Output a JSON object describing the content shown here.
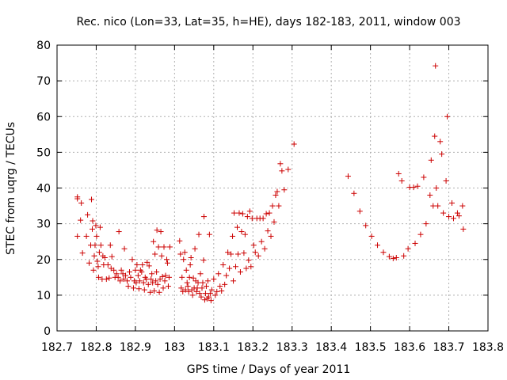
{
  "chart_data": {
    "type": "scatter",
    "title": "Rec. nico (Lon=33, Lat=35, h=HE), days 182-183, 2011, window 003",
    "xlabel": "GPS time / Days of year 2011",
    "ylabel": "STEC from uqrg / TECUs",
    "xlim": [
      182.7,
      183.8
    ],
    "ylim": [
      0,
      80
    ],
    "xticks": [
      "182.7",
      "182.8",
      "182.9",
      "183",
      "183.1",
      "183.2",
      "183.3",
      "183.4",
      "183.5",
      "183.6",
      "183.7",
      "183.8"
    ],
    "yticks": [
      "0",
      "10",
      "20",
      "30",
      "40",
      "50",
      "60",
      "70",
      "80"
    ],
    "grid": true,
    "marker": "+",
    "color": "#cc0000",
    "points": [
      [
        182.752,
        37.5
      ],
      [
        182.752,
        37.0
      ],
      [
        182.752,
        26.5
      ],
      [
        182.76,
        31.0
      ],
      [
        182.762,
        35.8
      ],
      [
        182.765,
        21.8
      ],
      [
        182.775,
        26.5
      ],
      [
        182.778,
        32.5
      ],
      [
        182.782,
        19.0
      ],
      [
        182.786,
        24.0
      ],
      [
        182.788,
        36.8
      ],
      [
        182.79,
        28.5
      ],
      [
        182.791,
        30.8
      ],
      [
        182.793,
        17.0
      ],
      [
        182.795,
        21.0
      ],
      [
        182.797,
        24.0
      ],
      [
        182.799,
        29.5
      ],
      [
        182.801,
        26.5
      ],
      [
        182.803,
        19.5
      ],
      [
        182.805,
        18.0
      ],
      [
        182.806,
        15.0
      ],
      [
        182.808,
        22.0
      ],
      [
        182.81,
        29.0
      ],
      [
        182.812,
        24.0
      ],
      [
        182.815,
        14.5
      ],
      [
        182.817,
        21.0
      ],
      [
        182.819,
        18.5
      ],
      [
        182.822,
        20.5
      ],
      [
        182.826,
        14.5
      ],
      [
        182.83,
        18.5
      ],
      [
        182.833,
        14.8
      ],
      [
        182.836,
        24.0
      ],
      [
        182.838,
        17.5
      ],
      [
        182.84,
        20.8
      ],
      [
        182.845,
        17.0
      ],
      [
        182.848,
        15.0
      ],
      [
        182.852,
        16.0
      ],
      [
        182.856,
        15.0
      ],
      [
        182.858,
        27.8
      ],
      [
        182.861,
        14.0
      ],
      [
        182.864,
        17.0
      ],
      [
        182.868,
        16.0
      ],
      [
        182.87,
        14.5
      ],
      [
        182.872,
        23.0
      ],
      [
        182.875,
        15.5
      ],
      [
        182.879,
        14.0
      ],
      [
        182.882,
        12.5
      ],
      [
        182.885,
        16.5
      ],
      [
        182.888,
        15.0
      ],
      [
        182.892,
        20.0
      ],
      [
        182.895,
        12.0
      ],
      [
        182.897,
        14.0
      ],
      [
        182.9,
        17.0
      ],
      [
        182.902,
        13.5
      ],
      [
        182.904,
        18.5
      ],
      [
        182.907,
        15.5
      ],
      [
        182.909,
        11.8
      ],
      [
        182.911,
        14.0
      ],
      [
        182.913,
        17.0
      ],
      [
        182.916,
        16.5
      ],
      [
        182.918,
        18.5
      ],
      [
        182.921,
        13.5
      ],
      [
        182.923,
        11.5
      ],
      [
        182.925,
        15.0
      ],
      [
        182.928,
        14.5
      ],
      [
        182.93,
        19.2
      ],
      [
        182.933,
        13.0
      ],
      [
        182.935,
        18.2
      ],
      [
        182.938,
        10.8
      ],
      [
        182.94,
        14.5
      ],
      [
        182.942,
        16.0
      ],
      [
        182.944,
        13.5
      ],
      [
        182.946,
        25.0
      ],
      [
        182.948,
        11.2
      ],
      [
        182.95,
        21.5
      ],
      [
        182.952,
        14.0
      ],
      [
        182.954,
        16.5
      ],
      [
        182.955,
        28.2
      ],
      [
        182.957,
        13.0
      ],
      [
        182.959,
        23.5
      ],
      [
        182.961,
        10.8
      ],
      [
        182.963,
        14.5
      ],
      [
        182.965,
        27.8
      ],
      [
        182.967,
        21.0
      ],
      [
        182.969,
        15.2
      ],
      [
        182.971,
        12.0
      ],
      [
        182.973,
        23.5
      ],
      [
        182.975,
        14.0
      ],
      [
        182.977,
        15.5
      ],
      [
        182.98,
        20.0
      ],
      [
        182.982,
        19.0
      ],
      [
        182.984,
        12.5
      ],
      [
        182.986,
        15.0
      ],
      [
        182.988,
        23.5
      ],
      [
        183.013,
        25.2
      ],
      [
        183.015,
        21.5
      ],
      [
        183.017,
        12.0
      ],
      [
        183.019,
        15.0
      ],
      [
        183.021,
        11.0
      ],
      [
        183.023,
        20.0
      ],
      [
        183.026,
        22.0
      ],
      [
        183.028,
        11.5
      ],
      [
        183.03,
        17.0
      ],
      [
        183.032,
        13.5
      ],
      [
        183.034,
        12.5
      ],
      [
        183.036,
        11.0
      ],
      [
        183.038,
        15.0
      ],
      [
        183.04,
        18.5
      ],
      [
        183.042,
        20.5
      ],
      [
        183.044,
        11.5
      ],
      [
        183.046,
        10.0
      ],
      [
        183.048,
        14.8
      ],
      [
        183.05,
        12.0
      ],
      [
        183.052,
        23.0
      ],
      [
        183.054,
        14.0
      ],
      [
        183.056,
        11.0
      ],
      [
        183.058,
        12.0
      ],
      [
        183.06,
        13.5
      ],
      [
        183.062,
        27.0
      ],
      [
        183.064,
        10.5
      ],
      [
        183.066,
        16.0
      ],
      [
        183.068,
        9.5
      ],
      [
        183.07,
        12.0
      ],
      [
        183.072,
        13.5
      ],
      [
        183.074,
        19.8
      ],
      [
        183.075,
        32.0
      ],
      [
        183.077,
        8.7
      ],
      [
        183.079,
        10.5
      ],
      [
        183.081,
        12.5
      ],
      [
        183.083,
        9.0
      ],
      [
        183.085,
        14.0
      ],
      [
        183.087,
        9.5
      ],
      [
        183.089,
        27.0
      ],
      [
        183.091,
        10.5
      ],
      [
        183.093,
        8.5
      ],
      [
        183.095,
        11.5
      ],
      [
        183.1,
        14.5
      ],
      [
        183.104,
        10.0
      ],
      [
        183.108,
        11.0
      ],
      [
        183.112,
        16.0
      ],
      [
        183.116,
        12.5
      ],
      [
        183.12,
        11.2
      ],
      [
        183.124,
        18.5
      ],
      [
        183.128,
        13.0
      ],
      [
        183.132,
        15.5
      ],
      [
        183.136,
        22.0
      ],
      [
        183.14,
        17.5
      ],
      [
        183.144,
        21.5
      ],
      [
        183.148,
        26.5
      ],
      [
        183.15,
        14.0
      ],
      [
        183.152,
        33.0
      ],
      [
        183.156,
        18.0
      ],
      [
        183.16,
        29.0
      ],
      [
        183.162,
        21.5
      ],
      [
        183.165,
        33.0
      ],
      [
        183.168,
        16.5
      ],
      [
        183.171,
        27.8
      ],
      [
        183.174,
        32.8
      ],
      [
        183.177,
        21.8
      ],
      [
        183.18,
        27.0
      ],
      [
        183.183,
        17.5
      ],
      [
        183.186,
        32.0
      ],
      [
        183.189,
        19.8
      ],
      [
        183.192,
        33.5
      ],
      [
        183.195,
        18.0
      ],
      [
        183.198,
        31.5
      ],
      [
        183.202,
        24.0
      ],
      [
        183.206,
        22.0
      ],
      [
        183.21,
        31.5
      ],
      [
        183.214,
        21.0
      ],
      [
        183.218,
        31.5
      ],
      [
        183.222,
        25.0
      ],
      [
        183.226,
        31.5
      ],
      [
        183.23,
        23.0
      ],
      [
        183.234,
        32.8
      ],
      [
        183.238,
        28.0
      ],
      [
        183.242,
        33.0
      ],
      [
        183.246,
        26.5
      ],
      [
        183.25,
        35.0
      ],
      [
        183.254,
        30.5
      ],
      [
        183.258,
        38.0
      ],
      [
        183.262,
        39.0
      ],
      [
        183.266,
        35.0
      ],
      [
        183.27,
        46.8
      ],
      [
        183.274,
        44.8
      ],
      [
        183.28,
        39.5
      ],
      [
        183.29,
        45.2
      ],
      [
        183.305,
        52.3
      ],
      [
        183.443,
        43.3
      ],
      [
        183.458,
        38.5
      ],
      [
        183.473,
        33.5
      ],
      [
        183.488,
        29.5
      ],
      [
        183.503,
        26.5
      ],
      [
        183.518,
        24.0
      ],
      [
        183.533,
        22.0
      ],
      [
        183.548,
        20.8
      ],
      [
        183.558,
        20.3
      ],
      [
        183.566,
        20.5
      ],
      [
        183.572,
        44.0
      ],
      [
        183.58,
        42.0
      ],
      [
        183.585,
        21.0
      ],
      [
        183.596,
        23.0
      ],
      [
        183.6,
        40.2
      ],
      [
        183.61,
        40.2
      ],
      [
        183.614,
        24.5
      ],
      [
        183.62,
        40.5
      ],
      [
        183.628,
        27.0
      ],
      [
        183.636,
        43.0
      ],
      [
        183.642,
        30.0
      ],
      [
        183.652,
        38.0
      ],
      [
        183.655,
        47.8
      ],
      [
        183.66,
        35.0
      ],
      [
        183.664,
        54.5
      ],
      [
        183.666,
        74.2
      ],
      [
        183.668,
        40.0
      ],
      [
        183.672,
        35.0
      ],
      [
        183.678,
        53.0
      ],
      [
        183.682,
        49.5
      ],
      [
        183.686,
        33.0
      ],
      [
        183.693,
        42.0
      ],
      [
        183.696,
        60.0
      ],
      [
        183.7,
        32.0
      ],
      [
        183.708,
        35.8
      ],
      [
        183.712,
        31.5
      ],
      [
        183.722,
        33.0
      ],
      [
        183.726,
        32.2
      ],
      [
        183.735,
        35.0
      ],
      [
        183.737,
        28.5
      ]
    ]
  }
}
